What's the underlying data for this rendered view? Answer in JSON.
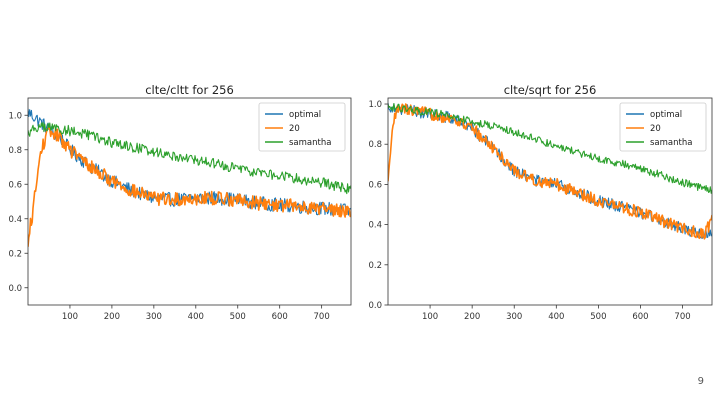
{
  "slide": {
    "page_number": "9"
  },
  "chart_data": [
    {
      "type": "line",
      "title": "clte/cltt for 256",
      "xlabel": "",
      "ylabel": "",
      "xlim": [
        0,
        770
      ],
      "ylim": [
        -0.1,
        1.1
      ],
      "xticks": [
        100,
        200,
        300,
        400,
        500,
        600,
        700
      ],
      "yticks": [
        0.0,
        0.2,
        0.4,
        0.6,
        0.8,
        1.0
      ],
      "grid": false,
      "legend_position": "top-right",
      "series": [
        {
          "name": "optimal",
          "color": "#1f77b4",
          "x": [
            0,
            10,
            20,
            30,
            40,
            50,
            60,
            80,
            100,
            150,
            200,
            250,
            300,
            350,
            400,
            450,
            500,
            550,
            600,
            650,
            700,
            750,
            770
          ],
          "y": [
            1.02,
            1.0,
            0.98,
            0.96,
            0.94,
            0.92,
            0.9,
            0.86,
            0.8,
            0.7,
            0.62,
            0.56,
            0.52,
            0.51,
            0.52,
            0.52,
            0.51,
            0.49,
            0.48,
            0.47,
            0.46,
            0.45,
            0.44
          ],
          "noise": 0.04
        },
        {
          "name": "20",
          "color": "#ff7f0e",
          "x": [
            0,
            5,
            10,
            20,
            30,
            40,
            50,
            60,
            80,
            100,
            150,
            200,
            250,
            300,
            350,
            400,
            450,
            500,
            550,
            600,
            650,
            700,
            750,
            770
          ],
          "y": [
            0.22,
            0.35,
            0.42,
            0.6,
            0.78,
            0.86,
            0.9,
            0.9,
            0.86,
            0.8,
            0.7,
            0.62,
            0.56,
            0.52,
            0.51,
            0.52,
            0.52,
            0.51,
            0.49,
            0.48,
            0.47,
            0.46,
            0.45,
            0.44
          ],
          "noise": 0.04
        },
        {
          "name": "samantha",
          "color": "#2ca02c",
          "x": [
            0,
            20,
            50,
            100,
            150,
            200,
            300,
            400,
            500,
            600,
            700,
            770
          ],
          "y": [
            0.9,
            0.93,
            0.93,
            0.91,
            0.88,
            0.84,
            0.79,
            0.74,
            0.69,
            0.65,
            0.61,
            0.57
          ],
          "noise": 0.03
        }
      ]
    },
    {
      "type": "line",
      "title": "clte/sqrt for 256",
      "xlabel": "",
      "ylabel": "",
      "xlim": [
        0,
        770
      ],
      "ylim": [
        0.0,
        1.03
      ],
      "xticks": [
        100,
        200,
        300,
        400,
        500,
        600,
        700
      ],
      "yticks": [
        0.0,
        0.2,
        0.4,
        0.6,
        0.8,
        1.0
      ],
      "grid": false,
      "legend_position": "top-right",
      "series": [
        {
          "name": "optimal",
          "color": "#1f77b4",
          "x": [
            0,
            50,
            100,
            150,
            200,
            250,
            300,
            350,
            400,
            450,
            500,
            550,
            600,
            650,
            700,
            750,
            770
          ],
          "y": [
            0.99,
            0.97,
            0.95,
            0.93,
            0.88,
            0.78,
            0.67,
            0.62,
            0.6,
            0.56,
            0.52,
            0.49,
            0.46,
            0.42,
            0.38,
            0.35,
            0.36
          ],
          "noise": 0.03
        },
        {
          "name": "20",
          "color": "#ff7f0e",
          "x": [
            0,
            5,
            10,
            15,
            20,
            30,
            50,
            100,
            150,
            200,
            250,
            300,
            350,
            400,
            450,
            500,
            550,
            600,
            650,
            700,
            750,
            770
          ],
          "y": [
            0.6,
            0.72,
            0.85,
            0.93,
            0.96,
            0.98,
            0.97,
            0.95,
            0.93,
            0.88,
            0.78,
            0.67,
            0.62,
            0.6,
            0.56,
            0.52,
            0.49,
            0.46,
            0.42,
            0.38,
            0.35,
            0.42
          ],
          "noise": 0.03
        },
        {
          "name": "samantha",
          "color": "#2ca02c",
          "x": [
            0,
            50,
            100,
            150,
            200,
            250,
            300,
            400,
            500,
            600,
            700,
            770
          ],
          "y": [
            0.99,
            0.97,
            0.96,
            0.94,
            0.91,
            0.89,
            0.86,
            0.79,
            0.73,
            0.68,
            0.61,
            0.57
          ],
          "noise": 0.02
        }
      ]
    }
  ]
}
